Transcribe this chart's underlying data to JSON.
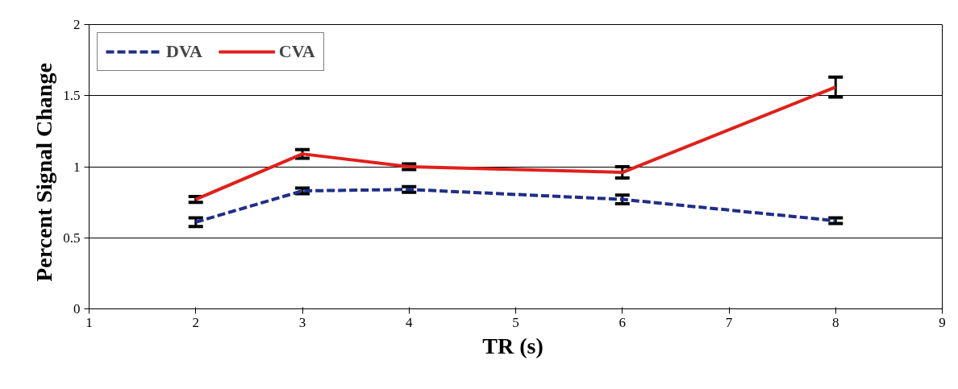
{
  "chart_data": {
    "type": "line",
    "xlabel": "TR  (s)",
    "ylabel": "Percent  Signal  Change",
    "x": [
      2,
      3,
      4,
      6,
      8
    ],
    "series": [
      {
        "name": "DVA",
        "color": "#1f2d8a",
        "line_style": "dashed",
        "values": [
          0.61,
          0.83,
          0.84,
          0.77,
          0.62
        ],
        "errors": [
          0.03,
          0.02,
          0.02,
          0.03,
          0.02
        ]
      },
      {
        "name": "CVA",
        "color": "#e0201b",
        "line_style": "solid",
        "values": [
          0.77,
          1.09,
          1.0,
          0.96,
          1.56
        ],
        "errors": [
          0.02,
          0.03,
          0.02,
          0.04,
          0.07
        ]
      }
    ],
    "xlim": [
      1,
      9
    ],
    "xticks": [
      1,
      2,
      3,
      4,
      5,
      6,
      7,
      8,
      9
    ],
    "ylim": [
      0,
      2
    ],
    "yticks": [
      0,
      0.5,
      1,
      1.5,
      2
    ],
    "grid": "y",
    "legend": "top left",
    "marker": "none"
  }
}
